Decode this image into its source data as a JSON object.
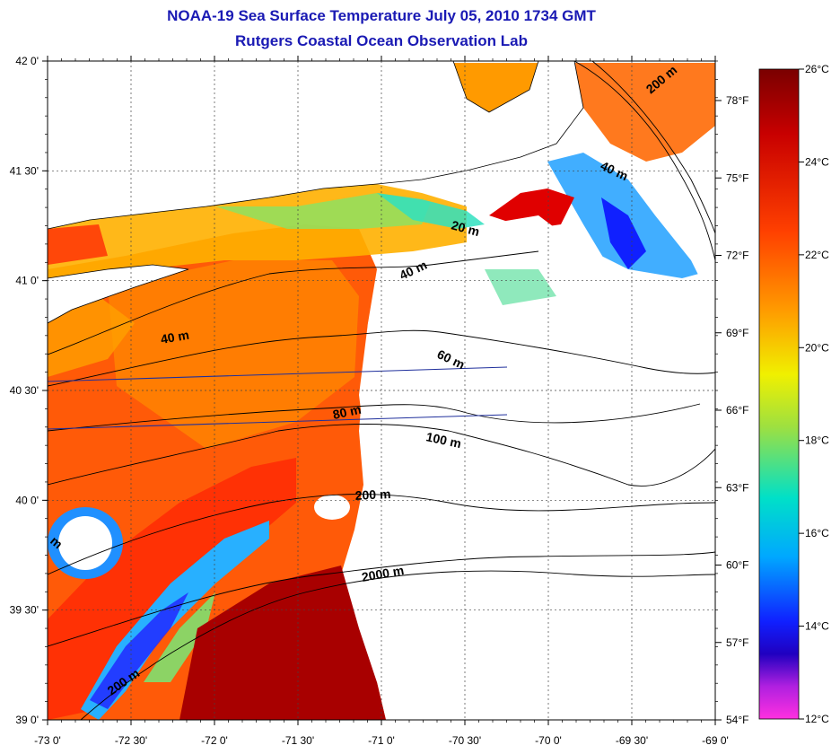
{
  "header": {
    "title": "NOAA-19 Sea Surface Temperature July 05, 2010 1734 GMT",
    "subtitle": "Rutgers Coastal Ocean Observation Lab"
  },
  "map": {
    "lat_range": [
      39.0,
      42.0
    ],
    "lon_range": [
      -73.0,
      -69.0
    ],
    "lat_ticks": [
      "42 0'",
      "41 30'",
      "41 0'",
      "40 30'",
      "40 0'",
      "39 30'",
      "39 0'"
    ],
    "lon_ticks": [
      "-73 0'",
      "-72 30'",
      "-72 0'",
      "-71 30'",
      "-71 0'",
      "-70 30'",
      "-70 0'",
      "-69 30'",
      "-69 0'"
    ],
    "fahrenheit_ticks": [
      "78°F",
      "75°F",
      "72°F",
      "69°F",
      "66°F",
      "63°F",
      "60°F",
      "57°F",
      "54°F"
    ],
    "grid": true,
    "contour_labels": [
      "200 m",
      "40 m",
      "20 m",
      "40 m",
      "40 m",
      "60 m",
      "80 m",
      "100 m",
      "200 m",
      "2000 m",
      "200 m",
      "m"
    ],
    "colors": {
      "land": "#ffffff",
      "coast": "#000000",
      "track": "#1f2f9c"
    }
  },
  "colorbar": {
    "min_c": 12,
    "max_c": 26,
    "labels": [
      "26°C",
      "24°C",
      "22°C",
      "20°C",
      "18°C",
      "16°C",
      "14°C",
      "12°C"
    ]
  }
}
